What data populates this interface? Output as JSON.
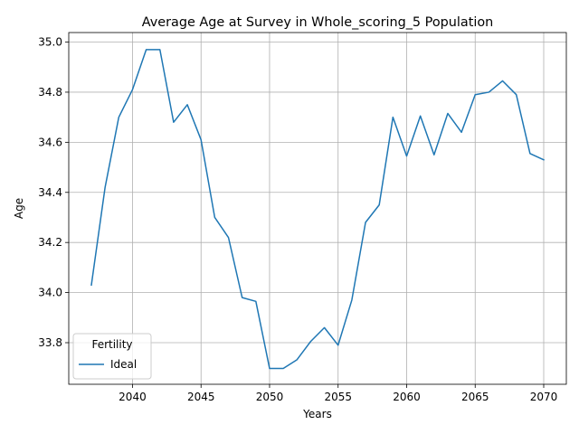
{
  "chart_data": {
    "type": "line",
    "title": "Average Age at Survey in Whole_scoring_5 Population",
    "xlabel": "Years",
    "ylabel": "Age",
    "xlim": [
      2035.35,
      2071.65
    ],
    "ylim": [
      33.634,
      35.038
    ],
    "xticks": [
      2040,
      2045,
      2050,
      2055,
      2060,
      2065,
      2070
    ],
    "yticks": [
      33.8,
      34.0,
      34.2,
      34.4,
      34.6,
      34.8,
      35.0
    ],
    "xtick_labels": [
      "2040",
      "2045",
      "2050",
      "2055",
      "2060",
      "2065",
      "2070"
    ],
    "ytick_labels": [
      "33.8",
      "34.0",
      "34.2",
      "34.4",
      "34.6",
      "34.8",
      "35.0"
    ],
    "grid": true,
    "legend": {
      "title": "Fertility",
      "placement": "lower-left"
    },
    "series": [
      {
        "name": "Ideal",
        "color": "#1f77b4",
        "x": [
          2037,
          2038,
          2039,
          2040,
          2041,
          2042,
          2043,
          2044,
          2045,
          2046,
          2047,
          2048,
          2049,
          2050,
          2051,
          2052,
          2053,
          2054,
          2055,
          2056,
          2057,
          2058,
          2059,
          2060,
          2061,
          2062,
          2063,
          2064,
          2065,
          2066,
          2067,
          2068,
          2069,
          2070
        ],
        "y": [
          34.03,
          34.42,
          34.7,
          34.81,
          34.97,
          34.97,
          34.68,
          34.75,
          34.61,
          34.3,
          34.22,
          33.98,
          33.965,
          33.697,
          33.697,
          33.732,
          33.805,
          33.86,
          33.79,
          33.97,
          34.28,
          34.35,
          34.7,
          34.545,
          34.705,
          34.55,
          34.715,
          34.64,
          34.79,
          34.8,
          34.845,
          34.79,
          34.555,
          34.53
        ]
      }
    ]
  }
}
